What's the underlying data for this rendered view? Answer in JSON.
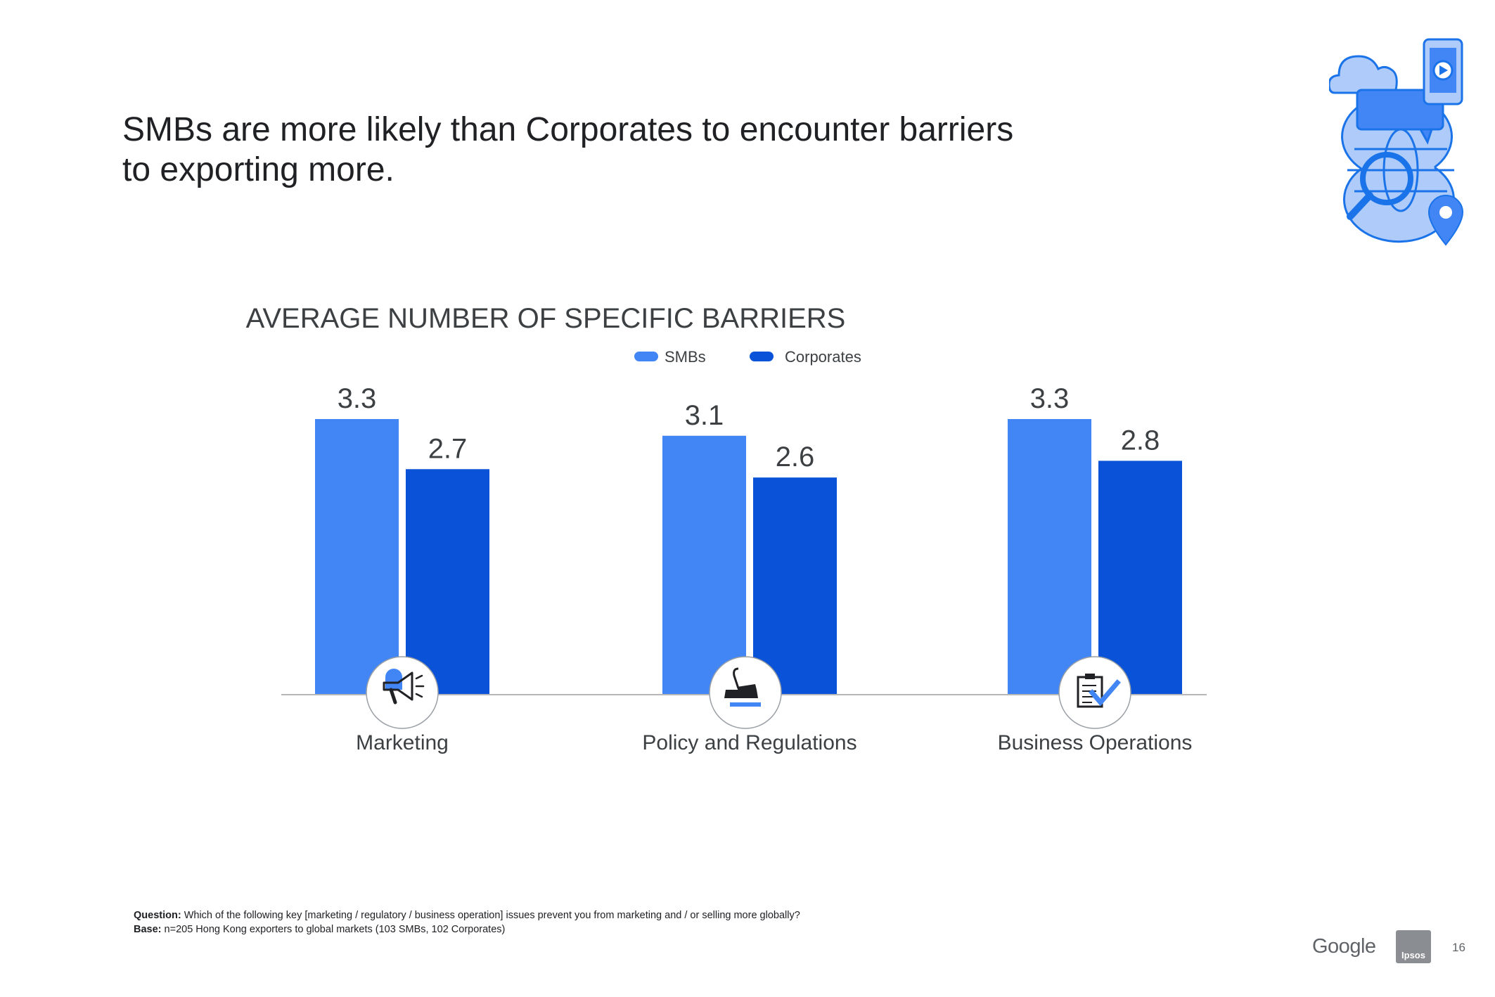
{
  "slide": {
    "title_line1": "SMBs are more likely than Corporates to encounter barriers",
    "title_line2": "to exporting more.",
    "footnote": {
      "question_label": "Question:",
      "question_text": "Which of the following key [marketing / regulatory / business operation] issues prevent you from marketing and / or selling more globally?",
      "base_label": "Base:",
      "base_text": "n=205 Hong Kong exporters to global markets (103 SMBs, 102 Corporates)"
    },
    "logos": {
      "google": "Google",
      "ipsos": "Ipsos"
    },
    "page_number": "16",
    "colors": {
      "smb": "#4285f4",
      "corporate": "#0a52d7",
      "axis": "#b7b7b7",
      "text_dark": "#202124",
      "text_mid": "#3c4043"
    }
  },
  "chart_data": {
    "type": "bar",
    "title": "AVERAGE NUMBER OF SPECIFIC BARRIERS",
    "categories": [
      "Marketing",
      "Policy and Regulations",
      "Business Operations"
    ],
    "category_icons": [
      "megaphone-icon",
      "stamp-icon",
      "clipboard-check-icon"
    ],
    "series": [
      {
        "name": "SMBs",
        "values": [
          3.3,
          3.1,
          3.3
        ],
        "labels": [
          "3.3",
          "3.1",
          "3.3"
        ]
      },
      {
        "name": "Corporates",
        "values": [
          2.7,
          2.6,
          2.8
        ],
        "labels": [
          "2.7",
          "2.6",
          "2.8"
        ]
      }
    ],
    "ylim": [
      0,
      3.3
    ],
    "legend": "top-center",
    "grid": false,
    "xlabel": "",
    "ylabel": ""
  }
}
